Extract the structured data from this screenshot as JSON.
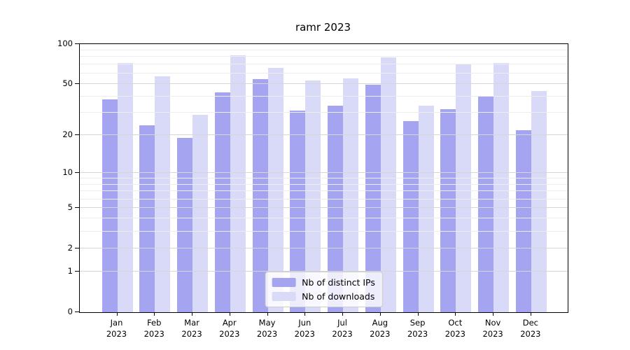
{
  "chart_data": {
    "type": "bar",
    "title": "ramr 2023",
    "categories": [
      "Jan 2023",
      "Feb 2023",
      "Mar 2023",
      "Apr 2023",
      "May 2023",
      "Jun 2023",
      "Jul 2023",
      "Aug 2023",
      "Sep 2023",
      "Oct 2023",
      "Nov 2023",
      "Dec 2023"
    ],
    "series": [
      {
        "name": "Nb of distinct IPs",
        "color": "#a4a4f1",
        "values": [
          38,
          24,
          19,
          43,
          54,
          31,
          34,
          49,
          26,
          32,
          40,
          22
        ]
      },
      {
        "name": "Nb of downloads",
        "color": "#d9d9f8",
        "values": [
          72,
          57,
          29,
          82,
          66,
          53,
          55,
          79,
          34,
          70,
          72,
          44
        ]
      }
    ],
    "yscale": "log1p",
    "ylim": [
      0,
      100
    ],
    "yticks": [
      100,
      50,
      20,
      10,
      5,
      2,
      1,
      0
    ],
    "yticks_minor": [
      90,
      80,
      70,
      60,
      40,
      30,
      9,
      8,
      7,
      6,
      4,
      3
    ],
    "grid": true,
    "legend_position": "lower center"
  }
}
